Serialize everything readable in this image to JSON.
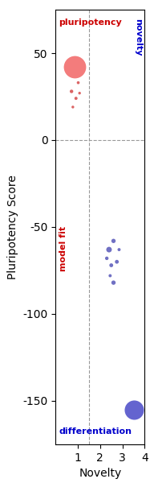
{
  "chart_data": {
    "type": "scatter",
    "xlabel": "Novelty",
    "ylabel": "Pluripotency Score",
    "xlim": [
      0,
      4
    ],
    "ylim": [
      -175,
      75
    ],
    "xticks": [
      1,
      2,
      3,
      4
    ],
    "yticks": [
      50,
      0,
      -50,
      -100,
      -150
    ],
    "thresholds": {
      "x": 1.5,
      "y": 0
    },
    "series": [
      {
        "color": "#ee4444",
        "x": [
          0.85
        ],
        "y": [
          42
        ],
        "sizes": [
          400
        ]
      },
      {
        "color": "#cc2222",
        "x": [
          0.72,
          0.92,
          1.08,
          0.78,
          1.02
        ],
        "y": [
          28,
          24,
          27,
          19,
          33
        ],
        "sizes": [
          10,
          8,
          6,
          6,
          7
        ]
      },
      {
        "color": "#3333aa",
        "x": [
          2.4,
          2.6,
          2.5,
          2.75,
          2.3,
          2.85,
          2.6,
          2.45
        ],
        "y": [
          -63,
          -58,
          -72,
          -70,
          -68,
          -63,
          -82,
          -78
        ],
        "sizes": [
          25,
          15,
          12,
          12,
          10,
          8,
          15,
          8
        ]
      },
      {
        "color": "#2222bb",
        "x": [
          3.5
        ],
        "y": [
          -155
        ],
        "sizes": [
          300
        ]
      }
    ],
    "annotations": [
      {
        "text": "pluripotency",
        "color": "#cc0000"
      },
      {
        "text": "differentiation",
        "color": "#0000cc"
      },
      {
        "text": "novelty",
        "color": "#0000cc"
      },
      {
        "text": "model fit",
        "color": "#cc0000"
      }
    ]
  }
}
